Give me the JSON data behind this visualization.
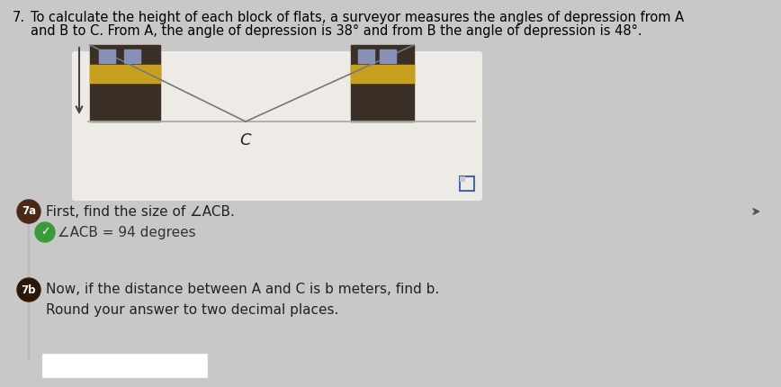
{
  "overall_bg": "#c8c8c8",
  "diagram_bg": "#eeeae6",
  "title_number": "7.",
  "title_line1": "To calculate the height of each block of flats, a surveyor measures the angles of depression from A",
  "title_line2": "and B to C. From A, the angle of depression is 38° and from B the angle of depression is 48°.",
  "building_dark": "#3a3028",
  "building_yellow": "#c8a020",
  "building_window1": "#8090b0",
  "building_window2": "#9090a8",
  "ground_color": "#aaaaaa",
  "line_color": "#888888",
  "arrow_color": "#555555",
  "c_label": "C",
  "badge_7a_color": "#4a2818",
  "badge_7b_color": "#2a1808",
  "check_color": "#3a9a3a",
  "text_7a": "First, find the size of ∠ACB.",
  "answer_7a": "∠ACB = 94 degrees",
  "text_7b_1": "Now, if the distance between A and C is b meters, find b.",
  "text_7b_2": "Round your answer to two decimal places.",
  "nav_arrow_color": "#555555",
  "expand_icon_color": "#4466aa"
}
